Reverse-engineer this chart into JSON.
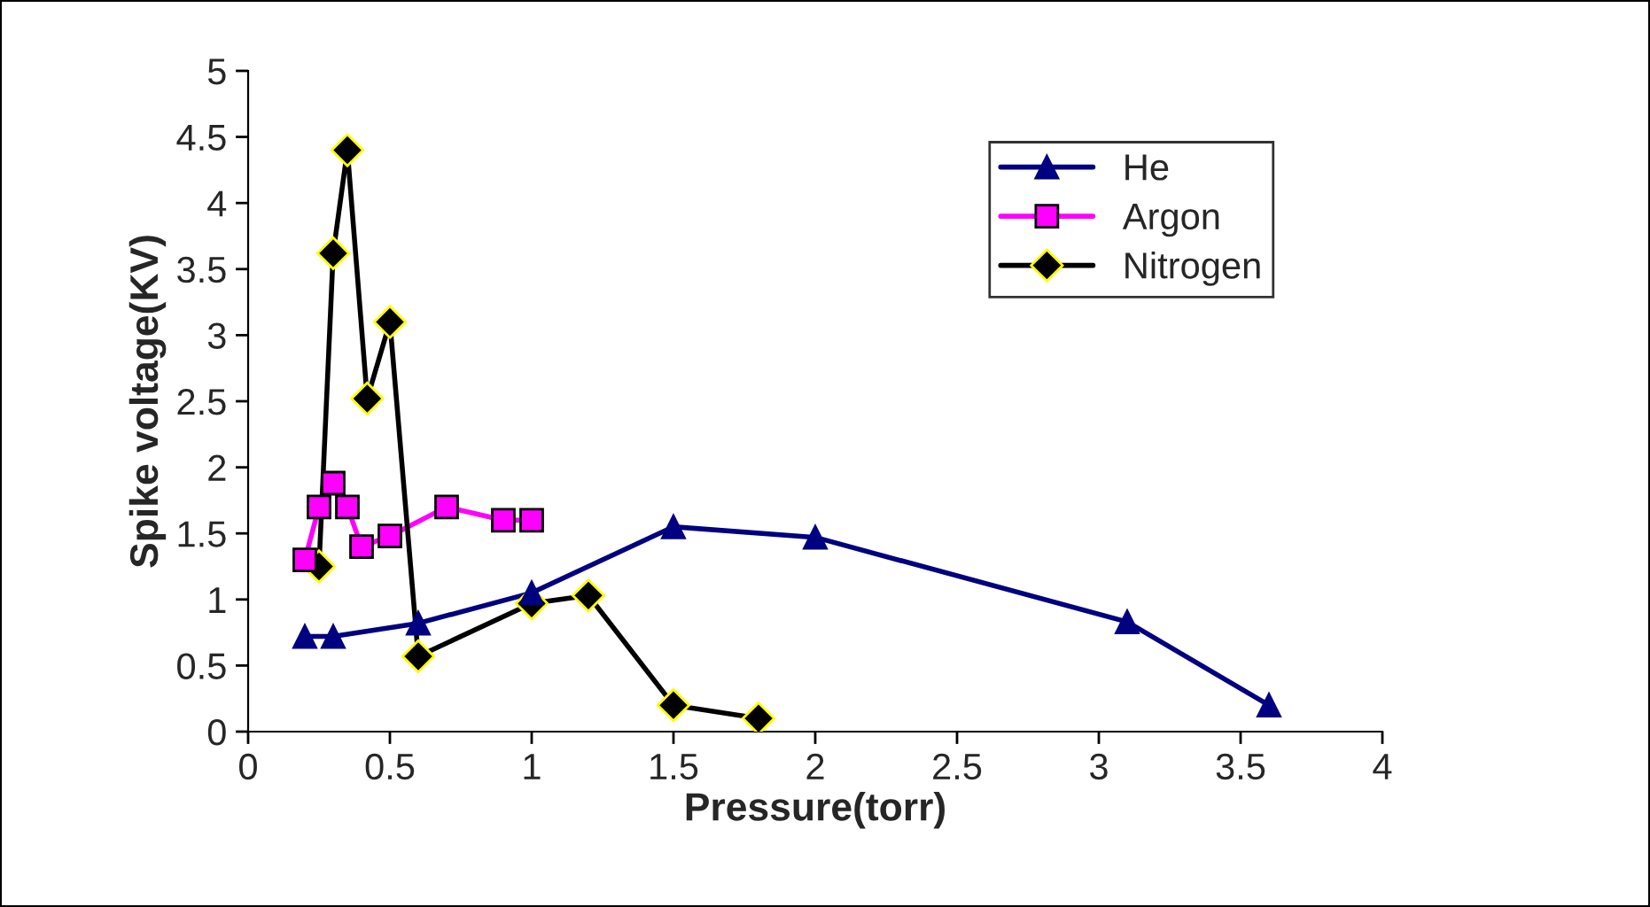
{
  "chart_data": {
    "type": "line",
    "xlabel": "Pressure(torr)",
    "ylabel": "Spike voltage(KV)",
    "xlim": [
      0,
      4
    ],
    "xticks": [
      0,
      0.5,
      1,
      1.5,
      2,
      2.5,
      3,
      3.5,
      4
    ],
    "ylim": [
      0,
      5
    ],
    "yticks": [
      0,
      0.5,
      1,
      1.5,
      2,
      2.5,
      3,
      3.5,
      4,
      4.5,
      5
    ],
    "grid": false,
    "legend": "top right",
    "series": [
      {
        "name": "He",
        "color": "#000080",
        "marker": "triangle",
        "x": [
          0.2,
          0.3,
          0.6,
          1.0,
          1.5,
          2.0,
          3.1,
          3.6
        ],
        "values": [
          0.72,
          0.72,
          0.82,
          1.05,
          1.55,
          1.47,
          0.83,
          0.2
        ]
      },
      {
        "name": "Argon",
        "color": "#ff00ff",
        "marker": "square",
        "x": [
          0.2,
          0.25,
          0.3,
          0.35,
          0.4,
          0.5,
          0.7,
          0.9,
          1.0
        ],
        "values": [
          1.3,
          1.7,
          1.88,
          1.7,
          1.4,
          1.48,
          1.7,
          1.6,
          1.6
        ]
      },
      {
        "name": "Nitrogen",
        "color": "#000000",
        "marker": "diamond",
        "x": [
          0.25,
          0.3,
          0.35,
          0.42,
          0.5,
          0.6,
          1.0,
          1.2,
          1.5,
          1.8
        ],
        "values": [
          1.25,
          3.62,
          4.4,
          2.52,
          3.1,
          0.57,
          0.97,
          1.03,
          0.2,
          0.1
        ]
      }
    ]
  }
}
